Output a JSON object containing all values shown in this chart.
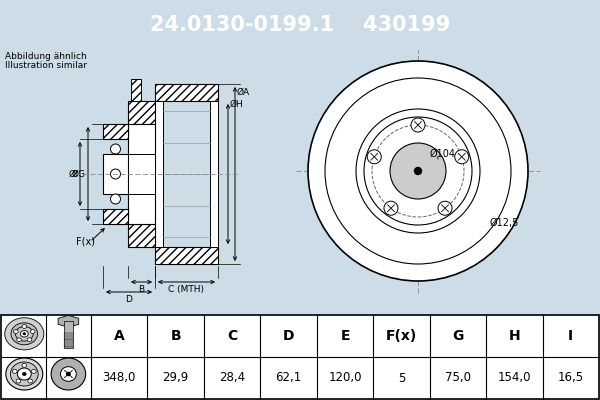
{
  "part_number": "24.0130-0199.1",
  "oe_number": "430199",
  "header_bg": "#0050a0",
  "header_text_color": "#ffffff",
  "body_bg": "#ccdde8",
  "table_bg": "#ffffff",
  "note_line1": "Abbildung ähnlich",
  "note_line2": "Illustration similar",
  "table_headers": [
    "A",
    "B",
    "C",
    "D",
    "E",
    "F(x)",
    "G",
    "H",
    "I"
  ],
  "table_values": [
    "348,0",
    "29,9",
    "28,4",
    "62,1",
    "120,0",
    "5",
    "75,0",
    "154,0",
    "16,5"
  ],
  "bolt_hole_diameter": "Ø12,5",
  "center_diameter": "Ø104",
  "lc": "#000000",
  "dim_color": "#000000",
  "hatch_color": "#000000",
  "bg_inner": "#ccdde8",
  "white": "#ffffff",
  "gray_fill": "#e8e8e8"
}
